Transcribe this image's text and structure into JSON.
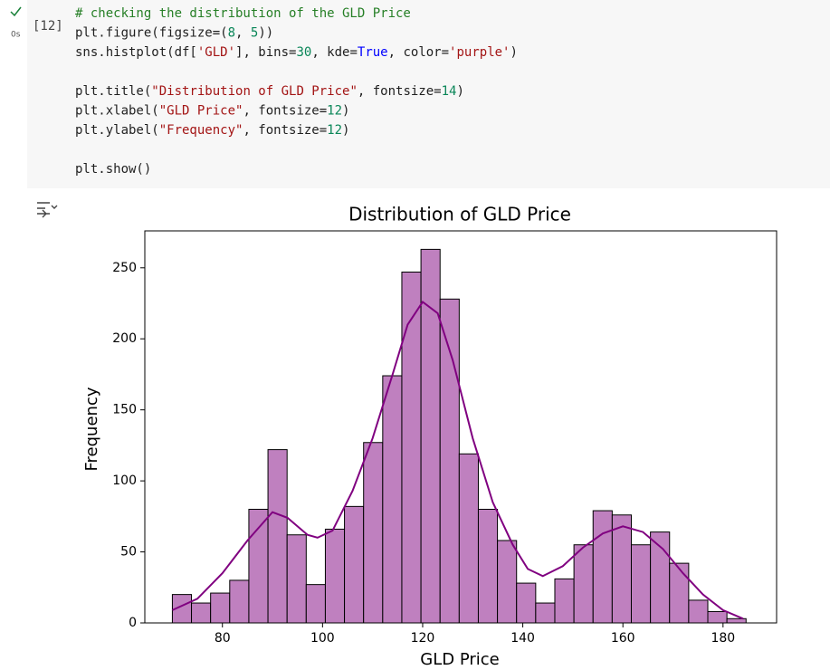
{
  "cell": {
    "counter": "[12]",
    "duration": "0s",
    "code": [
      [
        [
          {
            "text": "# checking the distribution of the GLD Price",
            "color": "#267f26"
          }
        ],
        [
          {
            "text": "plt.figure(figsize=(",
            "color": "#1f1f1f"
          },
          {
            "text": "8",
            "color": "#0a8658"
          },
          {
            "text": ", ",
            "color": "#1f1f1f"
          },
          {
            "text": "5",
            "color": "#0a8658"
          },
          {
            "text": "))",
            "color": "#1f1f1f"
          }
        ],
        [
          {
            "text": "sns.histplot(df[",
            "color": "#1f1f1f"
          },
          {
            "text": "'GLD'",
            "color": "#a31515"
          },
          {
            "text": "], bins=",
            "color": "#1f1f1f"
          },
          {
            "text": "30",
            "color": "#0a8658"
          },
          {
            "text": ", kde=",
            "color": "#1f1f1f"
          },
          {
            "text": "True",
            "color": "#0000ff"
          },
          {
            "text": ", color=",
            "color": "#1f1f1f"
          },
          {
            "text": "'purple'",
            "color": "#a31515"
          },
          {
            "text": ")",
            "color": "#1f1f1f"
          }
        ]
      ],
      [
        [
          {
            "text": "plt.title(",
            "color": "#1f1f1f"
          },
          {
            "text": "\"Distribution of GLD Price\"",
            "color": "#a31515"
          },
          {
            "text": ", fontsize=",
            "color": "#1f1f1f"
          },
          {
            "text": "14",
            "color": "#0a8658"
          },
          {
            "text": ")",
            "color": "#1f1f1f"
          }
        ],
        [
          {
            "text": "plt.xlabel(",
            "color": "#1f1f1f"
          },
          {
            "text": "\"GLD Price\"",
            "color": "#a31515"
          },
          {
            "text": ", fontsize=",
            "color": "#1f1f1f"
          },
          {
            "text": "12",
            "color": "#0a8658"
          },
          {
            "text": ")",
            "color": "#1f1f1f"
          }
        ],
        [
          {
            "text": "plt.ylabel(",
            "color": "#1f1f1f"
          },
          {
            "text": "\"Frequency\"",
            "color": "#a31515"
          },
          {
            "text": ", fontsize=",
            "color": "#1f1f1f"
          },
          {
            "text": "12",
            "color": "#0a8658"
          },
          {
            "text": ")",
            "color": "#1f1f1f"
          }
        ]
      ],
      [
        [
          {
            "text": "plt.show()",
            "color": "#1f1f1f"
          }
        ]
      ]
    ]
  },
  "chart_data": {
    "type": "histogram",
    "title": "Distribution of GLD Price",
    "x_label": "GLD Price",
    "y_label": "Frequency",
    "bins": [
      70.0,
      73.82,
      77.64,
      81.46,
      85.28,
      89.1,
      92.92,
      96.74,
      100.56,
      104.38,
      108.2,
      112.02,
      115.84,
      119.66,
      123.48,
      127.3,
      131.12,
      134.94,
      138.76,
      142.58,
      146.4,
      150.22,
      154.04,
      157.86,
      161.68,
      165.5,
      169.32,
      173.14,
      176.96,
      180.78,
      184.6
    ],
    "values": [
      20,
      14,
      21,
      30,
      80,
      122,
      62,
      27,
      66,
      82,
      127,
      174,
      247,
      263,
      228,
      119,
      80,
      58,
      28,
      14,
      31,
      55,
      79,
      76,
      55,
      64,
      42,
      16,
      8,
      3
    ],
    "color": "#bf80bf",
    "edge_color": "#000000",
    "kde": {
      "color": "#800080",
      "x": [
        70,
        75,
        80,
        85,
        90,
        93,
        97,
        99,
        102,
        106,
        110,
        114,
        117,
        120,
        123,
        126,
        130,
        134,
        138,
        141,
        144,
        148,
        152,
        156,
        160,
        164,
        168,
        172,
        176,
        180,
        184
      ],
      "y": [
        9,
        17,
        35,
        58,
        78,
        74,
        62,
        60,
        65,
        93,
        130,
        175,
        210,
        226,
        218,
        185,
        130,
        85,
        55,
        38,
        33,
        40,
        53,
        63,
        68,
        64,
        52,
        35,
        20,
        9,
        3
      ]
    },
    "xlim": [
      64.5,
      190.7
    ],
    "ylim": [
      0,
      276
    ],
    "xticks": [
      80,
      100,
      120,
      140,
      160,
      180
    ],
    "yticks": [
      0,
      50,
      100,
      150,
      200,
      250
    ]
  }
}
